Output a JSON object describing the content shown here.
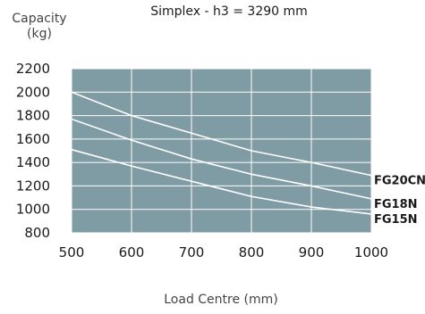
{
  "chart_data": {
    "type": "line",
    "title": "Simplex - h3 = 3290 mm",
    "ylabel_line1": "Capacity",
    "ylabel_line2": "(kg)",
    "xlabel": "Load Centre (mm)",
    "xlim": [
      500,
      1000
    ],
    "ylim": [
      800,
      2200
    ],
    "x_ticks": [
      500,
      600,
      700,
      800,
      900,
      1000
    ],
    "y_ticks": [
      800,
      1000,
      1200,
      1400,
      1600,
      1800,
      2000,
      2200
    ],
    "grid": true,
    "background_color": "#7f9ba3",
    "grid_color": "#ffffff",
    "line_color": "#ffffff",
    "series": [
      {
        "name": "FG20CN",
        "x": [
          500,
          600,
          700,
          800,
          900,
          1000
        ],
        "y": [
          2000,
          1800,
          1650,
          1500,
          1400,
          1290
        ]
      },
      {
        "name": "FG18N",
        "x": [
          500,
          600,
          700,
          800,
          900,
          1000
        ],
        "y": [
          1770,
          1590,
          1430,
          1300,
          1200,
          1090
        ]
      },
      {
        "name": "FG15N",
        "x": [
          500,
          600,
          700,
          800,
          900,
          1000
        ],
        "y": [
          1510,
          1370,
          1240,
          1110,
          1020,
          960
        ]
      }
    ]
  }
}
